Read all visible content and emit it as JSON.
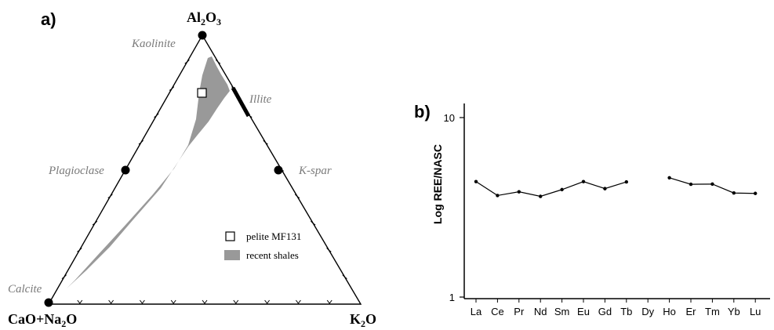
{
  "chart_data": [
    {
      "type": "ternary",
      "panel_label": "a)",
      "corners": {
        "top": {
          "main": "Al",
          "sub1": "2",
          "mid": "O",
          "sub2": "3"
        },
        "left": {
          "main": "CaO+Na",
          "sub1": "2",
          "mid": "O",
          "sub2": ""
        },
        "right": {
          "main": "K",
          "sub1": "2",
          "mid": "O",
          "sub2": ""
        }
      },
      "minerals": [
        {
          "name": "Kaolinite",
          "marker": true
        },
        {
          "name": "Illite",
          "marker": false
        },
        {
          "name": "Plagioclase",
          "marker": true
        },
        {
          "name": "K-spar",
          "marker": true
        },
        {
          "name": "Calcite",
          "marker": true
        }
      ],
      "legend": [
        {
          "label": "pelite MF131",
          "symbol": "open-square"
        },
        {
          "label": "recent shales",
          "symbol": "grey-field"
        }
      ],
      "colors": {
        "field": "#999999",
        "labels": "#7a7a7a",
        "line": "#000000"
      }
    },
    {
      "type": "line",
      "panel_label": "b)",
      "ylabel": "Log REE/NASC",
      "yscale": "log",
      "ylim": [
        1,
        10
      ],
      "yticks": [
        "1",
        "10"
      ],
      "categories": [
        "La",
        "Ce",
        "Pr",
        "Nd",
        "Sm",
        "Eu",
        "Gd",
        "Tb",
        "Dy",
        "Ho",
        "Er",
        "Tm",
        "Yb",
        "Lu"
      ],
      "values": [
        4.4,
        3.68,
        3.86,
        3.64,
        3.97,
        4.4,
        4.02,
        4.38,
        null,
        4.62,
        4.25,
        4.26,
        3.8,
        3.78
      ]
    }
  ]
}
